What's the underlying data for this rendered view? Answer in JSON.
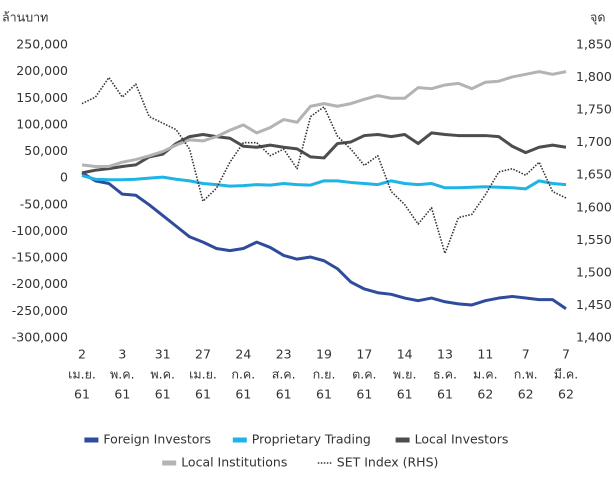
{
  "chart_data": {
    "type": "line",
    "ylabel": "ล้านบาท",
    "y2label": "จุด",
    "categories": [
      [
        "2",
        "เม.ย.",
        "61"
      ],
      null,
      null,
      [
        "3",
        "พ.ค.",
        "61"
      ],
      null,
      null,
      [
        "31",
        "พ.ค.",
        "61"
      ],
      null,
      null,
      [
        "27",
        "เม.ย.",
        "61"
      ],
      null,
      null,
      [
        "24",
        "ก.ค.",
        "61"
      ],
      null,
      null,
      [
        "23",
        "ส.ค.",
        "61"
      ],
      null,
      null,
      [
        "19",
        "ก.ย.",
        "61"
      ],
      null,
      null,
      [
        "17",
        "ต.ค.",
        "61"
      ],
      null,
      null,
      [
        "14",
        "พ.ย.",
        "61"
      ],
      null,
      null,
      [
        "13",
        "ธ.ค.",
        "61"
      ],
      null,
      null,
      [
        "11",
        "ม.ค.",
        "62"
      ],
      null,
      null,
      [
        "7",
        "ก.พ.",
        "62"
      ],
      null,
      null,
      [
        "7",
        "มี.ค.",
        "62"
      ]
    ],
    "ylim": [
      -300000,
      250000
    ],
    "yticks": [
      {
        "value": -300000,
        "label": "-300,000"
      },
      {
        "value": -250000,
        "label": "-250,000"
      },
      {
        "value": -200000,
        "label": "-200,000"
      },
      {
        "value": -150000,
        "label": "-150,000"
      },
      {
        "value": -100000,
        "label": "-100,000"
      },
      {
        "value": -50000,
        "label": "-50,000"
      },
      0,
      {
        "value": 50000,
        "label": "50,000"
      },
      {
        "value": 100000,
        "label": "100,000"
      },
      {
        "value": 150000,
        "label": "150,000"
      },
      {
        "value": 200000,
        "label": "200,000"
      },
      {
        "value": 250000,
        "label": "250,000"
      }
    ],
    "y2lim": [
      1400,
      1850
    ],
    "y2ticks": [
      {
        "value": 1400,
        "label": "1,400"
      },
      {
        "value": 1450,
        "label": "1,450"
      },
      {
        "value": 1500,
        "label": "1,500"
      },
      {
        "value": 1550,
        "label": "1,550"
      },
      {
        "value": 1600,
        "label": "1,600"
      },
      {
        "value": 1650,
        "label": "1,650"
      },
      {
        "value": 1700,
        "label": "1,700"
      },
      {
        "value": 1750,
        "label": "1,750"
      },
      {
        "value": 1800,
        "label": "1,800"
      },
      {
        "value": 1850,
        "label": "1,850"
      }
    ],
    "series": [
      {
        "name": "Foreign Investors",
        "color": "#2f4b9b",
        "values": [
          10000,
          -5000,
          -10000,
          -30000,
          -32000,
          -50000,
          -70000,
          -90000,
          -110000,
          -120000,
          -132000,
          -136000,
          -132000,
          -120000,
          -130000,
          -145000,
          -152000,
          -148000,
          -155000,
          -170000,
          -195000,
          -208000,
          -215000,
          -218000,
          -225000,
          -230000,
          -225000,
          -232000,
          -236000,
          -238000,
          -230000,
          -225000,
          -222000,
          -225000,
          -228000,
          -228000,
          -245000
        ]
      },
      {
        "name": "Proprietary Trading",
        "color": "#1fb4e6",
        "values": [
          5000,
          -2000,
          -3000,
          -3000,
          -2000,
          0,
          2000,
          -2000,
          -5000,
          -10000,
          -12000,
          -15000,
          -14000,
          -12000,
          -13000,
          -10000,
          -12000,
          -13000,
          -5000,
          -5000,
          -8000,
          -10000,
          -12000,
          -5000,
          -10000,
          -12000,
          -10000,
          -18000,
          -18000,
          -17000,
          -16000,
          -17000,
          -18000,
          -20000,
          -5000,
          -10000,
          -12000
        ]
      },
      {
        "name": "Local Investors",
        "color": "#4d4d4d",
        "values": [
          10000,
          15000,
          18000,
          22000,
          25000,
          40000,
          45000,
          65000,
          78000,
          82000,
          78000,
          75000,
          60000,
          58000,
          62000,
          58000,
          55000,
          40000,
          38000,
          65000,
          68000,
          80000,
          82000,
          78000,
          82000,
          65000,
          85000,
          82000,
          80000,
          80000,
          80000,
          78000,
          60000,
          48000,
          58000,
          62000,
          58000
        ]
      },
      {
        "name": "Local Institutions",
        "color": "#b3b3b3",
        "values": [
          25000,
          22000,
          22000,
          30000,
          35000,
          42000,
          50000,
          62000,
          72000,
          70000,
          78000,
          90000,
          100000,
          85000,
          95000,
          110000,
          105000,
          135000,
          140000,
          135000,
          140000,
          148000,
          155000,
          150000,
          150000,
          170000,
          168000,
          175000,
          178000,
          168000,
          180000,
          182000,
          190000,
          195000,
          200000,
          195000,
          200000
        ]
      },
      {
        "name": "SET Index (RHS)",
        "color": "#333333",
        "axis": "y2",
        "style": "dotted",
        "values": [
          1760,
          1770,
          1800,
          1770,
          1790,
          1740,
          1730,
          1720,
          1690,
          1610,
          1630,
          1670,
          1700,
          1700,
          1680,
          1690,
          1660,
          1740,
          1755,
          1710,
          1690,
          1665,
          1680,
          1625,
          1605,
          1575,
          1600,
          1530,
          1585,
          1590,
          1620,
          1655,
          1660,
          1650,
          1670,
          1625,
          1615
        ]
      }
    ]
  }
}
